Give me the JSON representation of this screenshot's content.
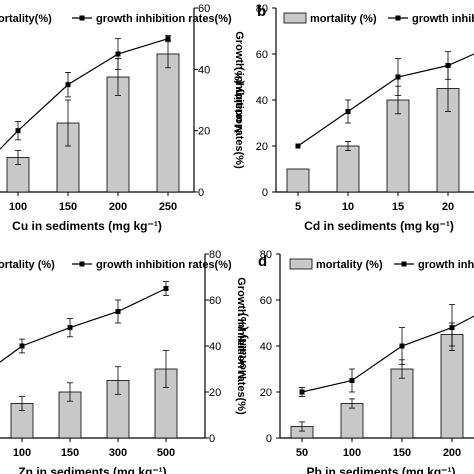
{
  "chart_data": [
    {
      "type": "bar",
      "panel_letter": "",
      "xlabel": "Cu in sediments (mg kg⁻¹)",
      "ylabel_left": "",
      "ylabel_right": "Growth inhibition rates(%)",
      "categories": [
        "100",
        "150",
        "200",
        "250"
      ],
      "ylim_left": [
        0,
        80
      ],
      "ylim_right": [
        0,
        60
      ],
      "yticks_left": [],
      "yticks_right": [
        0,
        20,
        40,
        60
      ],
      "legend": {
        "bar": "ortality(%)",
        "line": "growth inhibition rates(%)"
      },
      "series": [
        {
          "name": "mortality",
          "axis": "left",
          "values": [
            15,
            30,
            50,
            60
          ],
          "errors": [
            3,
            10,
            8,
            6
          ]
        },
        {
          "name": "growth inhibition rates",
          "axis": "right",
          "values": [
            20,
            35,
            45,
            50
          ],
          "errors": [
            3,
            4,
            5,
            1
          ]
        }
      ],
      "line_leading": 14
    },
    {
      "type": "bar",
      "panel_letter": "b",
      "xlabel": "Cd in sediments (mg kg⁻¹)",
      "ylabel_left": "Mortality (%)",
      "ylabel_right": "",
      "categories": [
        "5",
        "10",
        "15",
        "20"
      ],
      "ylim_left": [
        0,
        80
      ],
      "ylim_right": [
        0,
        80
      ],
      "yticks_left": [
        0,
        20,
        40,
        60,
        80
      ],
      "yticks_right": [],
      "legend": {
        "bar": "mortality (%)",
        "line": "growth inhibition"
      },
      "series": [
        {
          "name": "mortality",
          "axis": "left",
          "values": [
            10,
            20,
            40,
            45
          ],
          "errors": [
            0,
            2,
            6,
            10
          ]
        },
        {
          "name": "growth inhibition",
          "axis": "right",
          "values": [
            20,
            35,
            50,
            55
          ],
          "errors": [
            0,
            5,
            8,
            6
          ]
        }
      ],
      "line_trailing": 60
    },
    {
      "type": "bar",
      "panel_letter": "",
      "xlabel": "Zn in sediments (mg kg⁻¹)",
      "ylabel_left": "",
      "ylabel_right": "Growth inhibition rates(%)",
      "categories": [
        "100",
        "150",
        "300",
        "500"
      ],
      "ylim_left": [
        0,
        80
      ],
      "ylim_right": [
        0,
        80
      ],
      "yticks_left": [],
      "yticks_right": [
        0,
        20,
        40,
        60,
        80
      ],
      "legend": {
        "bar": "ortality (%)",
        "line": "growth inhibition rates(%)"
      },
      "series": [
        {
          "name": "mortality",
          "axis": "left",
          "values": [
            15,
            20,
            25,
            30
          ],
          "errors": [
            3,
            4,
            6,
            8
          ]
        },
        {
          "name": "growth inhibition rates",
          "axis": "right",
          "values": [
            40,
            48,
            55,
            65
          ],
          "errors": [
            3,
            4,
            5,
            3
          ]
        }
      ],
      "line_leading": 33
    },
    {
      "type": "bar",
      "panel_letter": "d",
      "xlabel": "Pb in sediments (mg kg⁻¹)",
      "ylabel_left": "Mortality (%)",
      "ylabel_right": "",
      "categories": [
        "50",
        "100",
        "150",
        "200"
      ],
      "ylim_left": [
        0,
        80
      ],
      "ylim_right": [
        0,
        80
      ],
      "yticks_left": [
        0,
        20,
        40,
        60,
        80
      ],
      "yticks_right": [],
      "legend": {
        "bar": "mortality (%)",
        "line": "growth inhibiti"
      },
      "series": [
        {
          "name": "mortality",
          "axis": "left",
          "values": [
            5,
            15,
            30,
            45
          ],
          "errors": [
            2,
            2,
            4,
            5
          ]
        },
        {
          "name": "growth inhibition",
          "axis": "right",
          "values": [
            20,
            25,
            40,
            48
          ],
          "errors": [
            2,
            5,
            8,
            10
          ]
        }
      ],
      "line_trailing": 53
    }
  ]
}
